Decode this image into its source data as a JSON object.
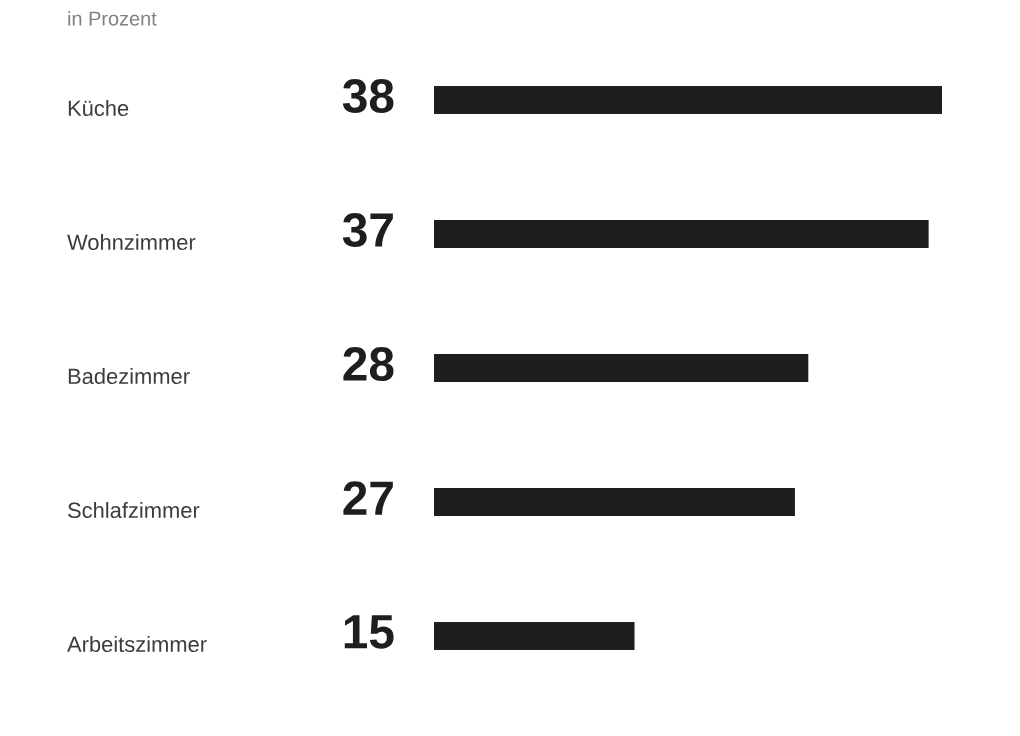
{
  "chart_data": {
    "type": "bar",
    "orientation": "horizontal",
    "subtitle": "in Prozent",
    "categories": [
      "Küche",
      "Wohnzimmer",
      "Badezimmer",
      "Schlafzimmer",
      "Arbeitszimmer"
    ],
    "values": [
      38,
      37,
      28,
      27,
      15
    ],
    "color": "#1e1e1e",
    "data_labels": true
  }
}
